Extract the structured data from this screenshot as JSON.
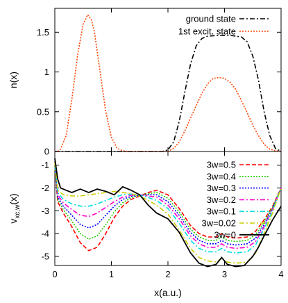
{
  "chart_data": [
    {
      "type": "line",
      "xlabel": "",
      "ylabel": "n(x)",
      "xlim": [
        0,
        4
      ],
      "ylim": [
        0,
        1.8
      ],
      "xticks": [
        0,
        1,
        2,
        3,
        4
      ],
      "yticks": [
        0,
        0.5,
        1,
        1.5
      ],
      "ytick_labels": [
        "0",
        "0.5",
        "1",
        "1.5"
      ],
      "grid": false,
      "legend_position": "top-right",
      "series": [
        {
          "name": "ground state",
          "color": "#000000",
          "dash": "dash-dot",
          "x": [
            0,
            0.5,
            1.0,
            1.5,
            1.9,
            2.0,
            2.1,
            2.2,
            2.3,
            2.4,
            2.5,
            2.6,
            2.7,
            2.9,
            3.1,
            3.3,
            3.4,
            3.5,
            3.6,
            3.7,
            3.8,
            3.9,
            4.0
          ],
          "values": [
            0,
            0,
            0,
            0,
            0,
            0.02,
            0.12,
            0.38,
            0.75,
            1.1,
            1.33,
            1.42,
            1.45,
            1.46,
            1.46,
            1.44,
            1.38,
            1.2,
            0.9,
            0.5,
            0.2,
            0.04,
            0
          ]
        },
        {
          "name": "1st excit. state",
          "color": "#ff4400",
          "dash": "dotted",
          "x": [
            0,
            0.05,
            0.1,
            0.2,
            0.3,
            0.4,
            0.5,
            0.58,
            0.65,
            0.7,
            0.8,
            0.9,
            1.0,
            1.1,
            1.2,
            1.3,
            1.5,
            2.0,
            2.1,
            2.2,
            2.3,
            2.4,
            2.5,
            2.6,
            2.7,
            2.8,
            2.9,
            3.0,
            3.1,
            3.2,
            3.3,
            3.4,
            3.5,
            3.6,
            3.7,
            3.8,
            3.9,
            4.0
          ],
          "values": [
            0,
            0,
            0.03,
            0.2,
            0.65,
            1.2,
            1.6,
            1.72,
            1.65,
            1.5,
            1.0,
            0.5,
            0.18,
            0.04,
            0.01,
            0,
            0,
            0,
            0.04,
            0.12,
            0.26,
            0.42,
            0.58,
            0.73,
            0.85,
            0.92,
            0.93,
            0.92,
            0.87,
            0.78,
            0.64,
            0.49,
            0.33,
            0.2,
            0.09,
            0.03,
            0.01,
            0
          ]
        }
      ]
    },
    {
      "type": "line",
      "xlabel": "x(a.u.)",
      "ylabel": "v",
      "ylabel_sub": "xc,w",
      "ylabel_suffix": "(x)",
      "xlim": [
        0,
        4
      ],
      "ylim": [
        -5.4,
        -0.4
      ],
      "xticks": [
        0,
        1,
        2,
        3,
        4
      ],
      "yticks": [
        -5,
        -4,
        -3,
        -2,
        -1
      ],
      "ytick_labels": [
        "-5",
        "-4",
        "-3",
        "-2",
        "-1"
      ],
      "grid": false,
      "legend_position": "top-right",
      "series": [
        {
          "name": "3w=0.5",
          "color": "#ff0000",
          "dash": "dashed",
          "x": [
            0,
            0.05,
            0.15,
            0.3,
            0.45,
            0.6,
            0.75,
            0.9,
            1.05,
            1.2,
            1.35,
            1.5,
            1.65,
            1.8,
            2.0,
            2.2,
            2.4,
            2.55,
            2.7,
            2.85,
            2.95,
            3.05,
            3.2,
            3.4,
            3.55,
            3.7,
            3.85,
            4.0
          ],
          "values": [
            -1.0,
            -2.6,
            -3.1,
            -3.7,
            -4.4,
            -4.75,
            -4.6,
            -4.0,
            -3.3,
            -2.8,
            -2.5,
            -2.35,
            -2.2,
            -2.1,
            -2.3,
            -2.9,
            -3.65,
            -4.0,
            -4.15,
            -4.15,
            -4.0,
            -4.15,
            -4.2,
            -4.15,
            -3.9,
            -3.4,
            -2.8,
            -2.0
          ]
        },
        {
          "name": "3w=0.4",
          "color": "#22cc00",
          "dash": "dotted",
          "x": [
            0,
            0.05,
            0.15,
            0.3,
            0.45,
            0.6,
            0.75,
            0.9,
            1.05,
            1.2,
            1.35,
            1.5,
            1.65,
            1.8,
            2.0,
            2.2,
            2.4,
            2.55,
            2.7,
            2.85,
            2.95,
            3.05,
            3.2,
            3.4,
            3.55,
            3.7,
            3.85,
            4.0
          ],
          "values": [
            -1.0,
            -2.5,
            -2.95,
            -3.45,
            -4.0,
            -4.25,
            -4.1,
            -3.6,
            -3.05,
            -2.65,
            -2.42,
            -2.33,
            -2.25,
            -2.2,
            -2.45,
            -3.05,
            -3.8,
            -4.15,
            -4.3,
            -4.3,
            -4.15,
            -4.3,
            -4.35,
            -4.3,
            -4.05,
            -3.5,
            -2.85,
            -2.0
          ]
        },
        {
          "name": "3w=0.3",
          "color": "#0000ff",
          "dash": "dotted",
          "x": [
            0,
            0.05,
            0.15,
            0.3,
            0.45,
            0.6,
            0.75,
            0.9,
            1.05,
            1.2,
            1.35,
            1.5,
            1.65,
            1.8,
            2.0,
            2.2,
            2.4,
            2.55,
            2.7,
            2.85,
            2.95,
            3.05,
            3.2,
            3.4,
            3.55,
            3.7,
            3.85,
            4.0
          ],
          "values": [
            -1.0,
            -2.4,
            -2.8,
            -3.2,
            -3.6,
            -3.75,
            -3.6,
            -3.2,
            -2.8,
            -2.5,
            -2.37,
            -2.32,
            -2.3,
            -2.3,
            -2.6,
            -3.2,
            -3.95,
            -4.3,
            -4.45,
            -4.45,
            -4.3,
            -4.45,
            -4.5,
            -4.45,
            -4.2,
            -3.6,
            -2.9,
            -2.0
          ]
        },
        {
          "name": "3w=0.2",
          "color": "#ff00cc",
          "dash": "dash-dot",
          "x": [
            0,
            0.05,
            0.15,
            0.3,
            0.45,
            0.6,
            0.75,
            0.9,
            1.05,
            1.2,
            1.35,
            1.5,
            1.65,
            1.8,
            2.0,
            2.2,
            2.4,
            2.55,
            2.7,
            2.85,
            2.95,
            3.05,
            3.2,
            3.4,
            3.55,
            3.7,
            3.85,
            4.0
          ],
          "values": [
            -1.0,
            -2.3,
            -2.65,
            -2.95,
            -3.2,
            -3.25,
            -3.1,
            -2.85,
            -2.6,
            -2.4,
            -2.32,
            -2.3,
            -2.35,
            -2.4,
            -2.75,
            -3.35,
            -4.1,
            -4.45,
            -4.6,
            -4.6,
            -4.45,
            -4.6,
            -4.65,
            -4.6,
            -4.35,
            -3.7,
            -2.95,
            -2.0
          ]
        },
        {
          "name": "3w=0.1",
          "color": "#00dddd",
          "dash": "dash-dot",
          "x": [
            0,
            0.05,
            0.15,
            0.3,
            0.45,
            0.6,
            0.75,
            0.9,
            1.05,
            1.2,
            1.35,
            1.5,
            1.65,
            1.8,
            2.0,
            2.2,
            2.4,
            2.55,
            2.7,
            2.85,
            2.95,
            3.05,
            3.2,
            3.4,
            3.55,
            3.7,
            3.85,
            4.0
          ],
          "values": [
            -1.0,
            -2.2,
            -2.5,
            -2.7,
            -2.8,
            -2.8,
            -2.7,
            -2.55,
            -2.4,
            -2.3,
            -2.27,
            -2.3,
            -2.42,
            -2.55,
            -2.9,
            -3.55,
            -4.3,
            -4.65,
            -4.8,
            -4.8,
            -4.65,
            -4.8,
            -4.85,
            -4.8,
            -4.5,
            -3.8,
            -3.0,
            -2.0
          ]
        },
        {
          "name": "3w=0.02",
          "color": "#cccc00",
          "dash": "dash-dot",
          "x": [
            0,
            0.05,
            0.15,
            0.3,
            0.45,
            0.6,
            0.75,
            0.9,
            1.05,
            1.2,
            1.35,
            1.5,
            1.65,
            1.8,
            2.0,
            2.2,
            2.4,
            2.55,
            2.7,
            2.85,
            2.95,
            3.05,
            3.2,
            3.4,
            3.55,
            3.7,
            3.85,
            4.0
          ],
          "values": [
            -0.9,
            -2.1,
            -2.3,
            -2.35,
            -2.35,
            -2.3,
            -2.25,
            -2.2,
            -2.15,
            -2.2,
            -2.25,
            -2.35,
            -2.55,
            -2.75,
            -3.15,
            -3.85,
            -4.65,
            -5.05,
            -5.2,
            -5.25,
            -5.1,
            -5.25,
            -5.3,
            -5.25,
            -4.85,
            -4.0,
            -3.1,
            -2.0
          ]
        },
        {
          "name": "3w=0",
          "color": "#000000",
          "dash": "solid",
          "x": [
            0,
            0.05,
            0.1,
            0.2,
            0.3,
            0.45,
            0.6,
            0.75,
            0.9,
            1.05,
            1.2,
            1.35,
            1.5,
            1.65,
            1.8,
            2.0,
            2.2,
            2.4,
            2.55,
            2.7,
            2.85,
            2.95,
            3.05,
            3.2,
            3.35,
            3.5,
            3.6,
            3.7,
            3.85,
            4.0
          ],
          "values": [
            -0.7,
            -1.6,
            -2.0,
            -2.1,
            -2.2,
            -2.05,
            -2.2,
            -2.05,
            -2.15,
            -2.3,
            -1.95,
            -2.1,
            -2.3,
            -2.75,
            -3.1,
            -3.35,
            -3.95,
            -4.85,
            -5.3,
            -5.45,
            -5.35,
            -5.05,
            -5.35,
            -5.45,
            -5.4,
            -5.0,
            -4.6,
            -4.1,
            -3.4,
            -2.8
          ]
        }
      ]
    }
  ]
}
